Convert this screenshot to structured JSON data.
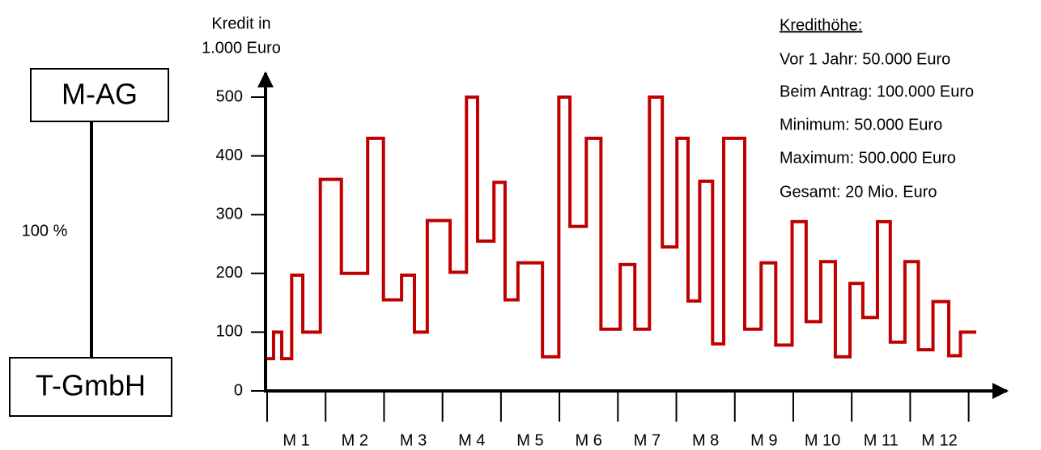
{
  "diagram": {
    "parent": "M-AG",
    "child": "T-GmbH",
    "share": "100 %"
  },
  "info": {
    "title": "Kredithöhe:",
    "lines": [
      "Vor 1 Jahr: 50.000 Euro",
      "Beim Antrag: 100.000 Euro",
      "Minimum: 50.000 Euro",
      "Maximum: 500.000 Euro",
      "Gesamt: 20 Mio. Euro"
    ]
  },
  "chart_data": {
    "type": "step",
    "ylabel": [
      "Kredit in",
      "1.000 Euro"
    ],
    "categories": [
      "M 1",
      "M 2",
      "M 3",
      "M 4",
      "M 5",
      "M 6",
      "M 7",
      "M 8",
      "M 9",
      "M 10",
      "M 11",
      "M 12"
    ],
    "x": [
      0,
      0.11,
      0.25,
      0.42,
      0.61,
      0.91,
      1.27,
      1.72,
      1.99,
      2.3,
      2.52,
      2.74,
      3.13,
      3.41,
      3.6,
      3.88,
      4.07,
      4.29,
      4.71,
      4.99,
      5.18,
      5.46,
      5.71,
      6.04,
      6.29,
      6.54,
      6.76,
      7.01,
      7.2,
      7.4,
      7.62,
      7.81,
      8.17,
      8.45,
      8.7,
      8.98,
      9.22,
      9.47,
      9.72,
      9.97,
      10.19,
      10.44,
      10.66,
      10.91,
      11.14,
      11.39,
      11.66,
      11.86,
      12.13
    ],
    "values": [
      55,
      100,
      55,
      197,
      100,
      360,
      200,
      430,
      155,
      197,
      100,
      290,
      202,
      500,
      255,
      355,
      155,
      218,
      58,
      500,
      280,
      430,
      105,
      215,
      105,
      500,
      245,
      430,
      153,
      357,
      80,
      430,
      105,
      218,
      78,
      288,
      118,
      220,
      58,
      183,
      125,
      288,
      83,
      220,
      70,
      152,
      60,
      100,
      100
    ],
    "color": "#c00000",
    "xlim": [
      0,
      12.67
    ],
    "ylim": [
      0,
      500
    ],
    "yticks": [
      0,
      100,
      200,
      300,
      400,
      500
    ]
  }
}
